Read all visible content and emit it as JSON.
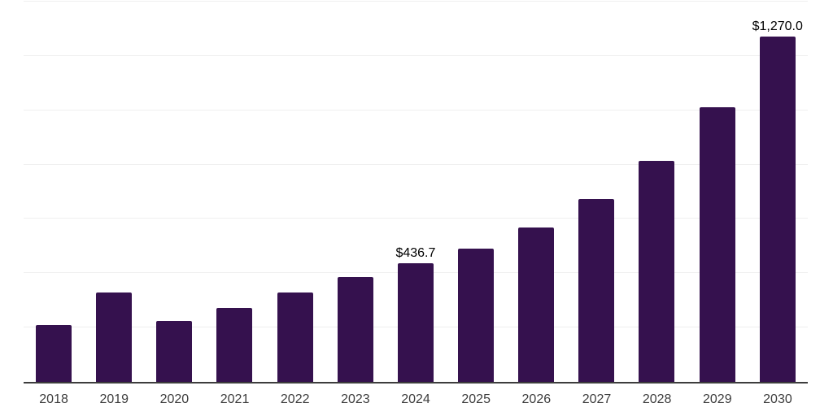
{
  "chart": {
    "background": "#ffffff",
    "bar_color": "#35114E",
    "gridline_color": "#efefef",
    "axis_line_color": "#3d3d3d",
    "tick_label_color": "#3d3d3d",
    "data_label_color": "#000000"
  },
  "chart_data": {
    "type": "bar",
    "title": "",
    "xlabel": "",
    "ylabel": "",
    "categories": [
      "2018",
      "2019",
      "2020",
      "2021",
      "2022",
      "2023",
      "2024",
      "2025",
      "2026",
      "2027",
      "2028",
      "2029",
      "2030"
    ],
    "values": [
      208,
      329,
      224,
      271,
      328,
      387,
      436.7,
      491,
      567,
      672,
      813,
      1012,
      1270
    ],
    "data_labels": [
      "",
      "",
      "",
      "",
      "",
      "",
      "$436.7",
      "",
      "",
      "",
      "",
      "",
      "$1,270.0"
    ],
    "ylim": [
      0,
      1400
    ],
    "gridline_interval": 200,
    "grid": "horizontal",
    "legend": "none",
    "y_axis_ticks_visible": false
  }
}
